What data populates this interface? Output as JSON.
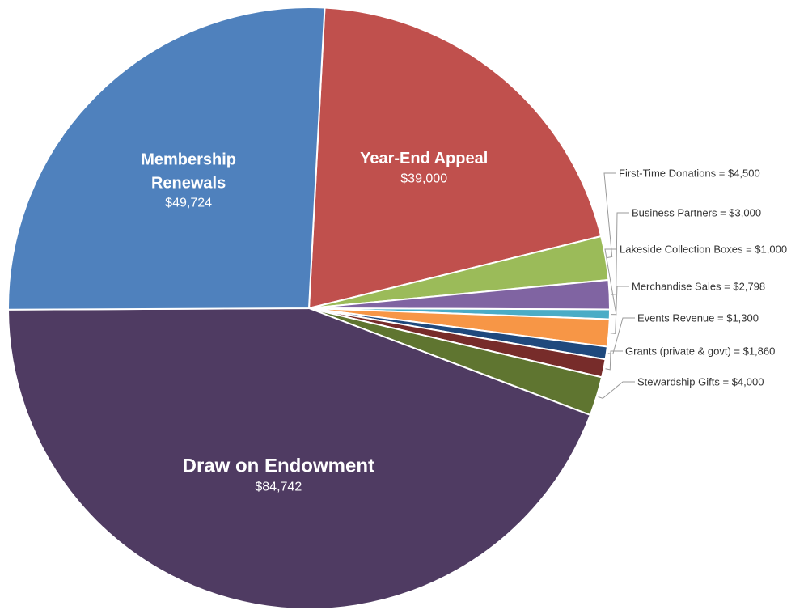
{
  "chart_data": {
    "type": "pie",
    "title": "",
    "start_angle_deg": 3,
    "slices": [
      {
        "name": "Year-End Appeal",
        "value": 39000,
        "value_label": "$39,000",
        "color": "#C0504D",
        "label_style": "inside"
      },
      {
        "name": "First-Time Donations",
        "value": 4500,
        "value_label": "$4,500",
        "color": "#9BBB59",
        "label_style": "outside",
        "label_text": "First-Time Donations = $4,500"
      },
      {
        "name": "Business Partners",
        "value": 3000,
        "value_label": "$3,000",
        "color": "#8064A2",
        "label_style": "outside",
        "label_text": "Business Partners = $3,000"
      },
      {
        "name": "Lakeside Collection Boxes",
        "value": 1000,
        "value_label": "$1,000",
        "color": "#4BACC6",
        "label_style": "outside",
        "label_text": "Lakeside Collection Boxes = $1,000"
      },
      {
        "name": "Merchandise Sales",
        "value": 2798,
        "value_label": "$2,798",
        "color": "#F79646",
        "label_style": "outside",
        "label_text": "Merchandise Sales = $2,798"
      },
      {
        "name": "Events Revenue",
        "value": 1300,
        "value_label": "$1,300",
        "color": "#1F497D",
        "label_style": "outside",
        "label_text": "Events Revenue = $1,300"
      },
      {
        "name": "Grants (private & govt)",
        "value": 1860,
        "value_label": "$1,860",
        "color": "#772C2A",
        "label_style": "outside",
        "label_text": "Grants (private & govt) = $1,860"
      },
      {
        "name": "Stewardship Gifts",
        "value": 4000,
        "value_label": "$4,000",
        "color": "#5F7530",
        "label_style": "outside",
        "label_text": "Stewardship Gifts = $4,000"
      },
      {
        "name": "Draw on Endowment",
        "value": 84742,
        "value_label": "$84,742",
        "color": "#4F3B62",
        "label_style": "inside"
      },
      {
        "name": "Membership Renewals",
        "value": 49724,
        "value_label": "$49,724",
        "color": "#4F81BD",
        "label_style": "inside",
        "name_lines": [
          "Membership",
          "Renewals"
        ]
      }
    ]
  }
}
